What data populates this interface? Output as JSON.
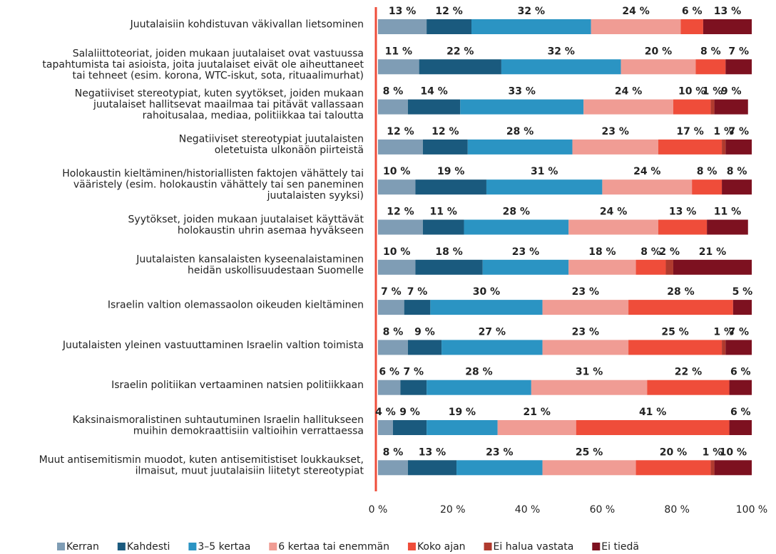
{
  "chart_data": {
    "type": "stacked-bar-horizontal",
    "categories": [
      "Juutalaisiin kohdistuvan väkivallan lietsominen",
      "Salaliittoteoriat, joiden mukaan juutalaiset ovat vastuussa\ntapahtumista tai asioista, joita juutalaiset eivät ole aiheuttaneet\ntai tehneet (esim. korona, WTC-iskut, sota, rituaalimurhat)",
      "Negatiiviset stereotypiat, kuten syytökset, joiden mukaan\njuutalaiset hallitsevat maailmaa tai pitävät vallassaan\nrahoitusalaa, mediaa, politiikkaa tai taloutta",
      "Negatiiviset stereotypiat juutalaisten\noletetuista ulkonäön piirteistä",
      "Holokaustin kieltäminen/historiallisten faktojen vähättely tai\nvääristely (esim. holokaustin vähättely tai sen paneminen\njuutalaisten syyksi)",
      "Syytökset, joiden mukaan juutalaiset käyttävät\nholokaustin uhrin asemaa hyväkseen",
      "Juutalaisten kansalaisten kyseenalaistaminen\nheidän uskollisuudestaan Suomelle",
      "Israelin valtion olemassaolon oikeuden kieltäminen",
      "Juutalaisten yleinen vastuuttaminen Israelin valtion toimista",
      "Israelin politiikan vertaaminen natsien politiikkaan",
      "Kaksinaismoralistinen suhtautuminen Israelin hallitukseen\nmuihin demokraattisiin valtioihin verrattaessa",
      "Muut antisemitismin muodot, kuten antisemitistiset loukkaukset,\nilmaisut, muut juutalaisiin liitetyt stereotypiat"
    ],
    "series": [
      {
        "name": "Kerran",
        "color": "#7f9db5",
        "values": [
          13,
          11,
          8,
          12,
          10,
          12,
          10,
          7,
          8,
          6,
          4,
          8
        ],
        "value_labels": [
          "13 %",
          "11 %",
          "8 %",
          "12 %",
          "10 %",
          "12 %",
          "10 %",
          "7 %",
          "8 %",
          "6 %",
          "4 %",
          "8 %"
        ]
      },
      {
        "name": "Kahdesti",
        "color": "#1a5a7e",
        "values": [
          12,
          22,
          14,
          12,
          19,
          11,
          18,
          7,
          9,
          7,
          9,
          13
        ],
        "value_labels": [
          "12 %",
          "22 %",
          "14 %",
          "12 %",
          "19 %",
          "11 %",
          "18 %",
          "7 %",
          "9 %",
          "7 %",
          "9 %",
          "13 %"
        ]
      },
      {
        "name": "3–5 kertaa",
        "color": "#2b94c3",
        "values": [
          32,
          32,
          33,
          28,
          31,
          28,
          23,
          30,
          27,
          28,
          19,
          23
        ],
        "value_labels": [
          "32 %",
          "32 %",
          "33 %",
          "28 %",
          "31 %",
          "28 %",
          "23 %",
          "30 %",
          "27 %",
          "28 %",
          "19 %",
          "23 %"
        ]
      },
      {
        "name": "6 kertaa tai enemmän",
        "color": "#f09c94",
        "values": [
          24,
          20,
          24,
          23,
          24,
          24,
          18,
          23,
          23,
          31,
          21,
          25
        ],
        "value_labels": [
          "24 %",
          "20 %",
          "24 %",
          "23 %",
          "24 %",
          "24 %",
          "18 %",
          "23 %",
          "23 %",
          "31 %",
          "21 %",
          "25 %"
        ]
      },
      {
        "name": "Koko ajan",
        "color": "#ef4d3a",
        "values": [
          6,
          8,
          10,
          17,
          8,
          13,
          8,
          28,
          25,
          22,
          41,
          20
        ],
        "value_labels": [
          "6 %",
          "8 %",
          "10 %",
          "17 %",
          "8 %",
          "13 %",
          "8 %",
          "28 %",
          "25 %",
          "22 %",
          "41 %",
          "20 %"
        ]
      },
      {
        "name": "Ei halua vastata",
        "color": "#b03a2e",
        "values": [
          0,
          0,
          1,
          1,
          0,
          0,
          2,
          0,
          1,
          0,
          0,
          1
        ],
        "value_labels": [
          null,
          null,
          "1 %",
          "1 %",
          null,
          null,
          "2 %",
          null,
          "1 %",
          null,
          null,
          "1 %"
        ]
      },
      {
        "name": "Ei tiedä",
        "color": "#7d1120",
        "values": [
          13,
          7,
          9,
          7,
          8,
          11,
          21,
          5,
          7,
          6,
          6,
          10
        ],
        "value_labels": [
          "13 %",
          "7 %",
          "9 %",
          "7 %",
          "8 %",
          "11 %",
          "21 %",
          "5 %",
          "7 %",
          "6 %",
          "6 %",
          "10 %"
        ]
      }
    ],
    "xlim": [
      0,
      100
    ],
    "xticks": [
      {
        "value": 0,
        "label": "0 %"
      },
      {
        "value": 20,
        "label": "20 %"
      },
      {
        "value": 40,
        "label": "40 %"
      },
      {
        "value": 60,
        "label": "60 %"
      },
      {
        "value": 80,
        "label": "80 %"
      },
      {
        "value": 100,
        "label": "100 %"
      }
    ],
    "legend": "bottom"
  }
}
